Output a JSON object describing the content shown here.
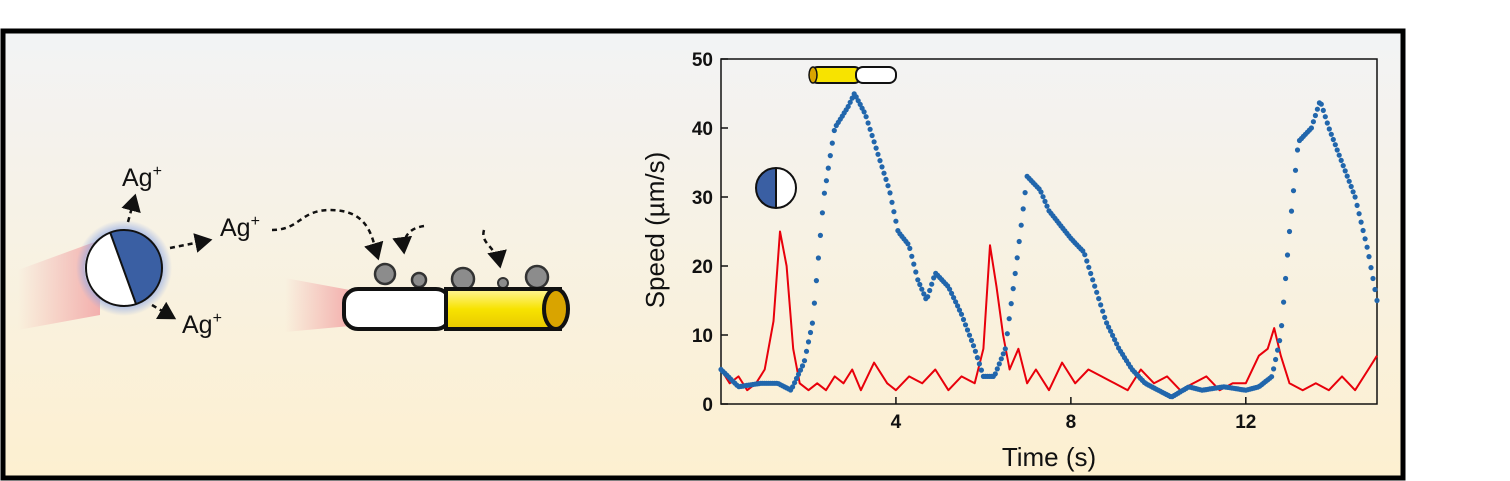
{
  "schematic": {
    "ion_labels": [
      "Ag",
      "Ag",
      "Ag",
      "Ag"
    ],
    "ion_charge": "+",
    "colors": {
      "janus_blue": "#3a5fa3",
      "janus_glow": "#9fb6e6",
      "rod_gold": "#f7e300",
      "rod_gold_cap": "#d9a400",
      "particle_gray": "#8c8c8c",
      "tail_red": "#f2b2b2"
    }
  },
  "chart_data": {
    "type": "line",
    "title": "",
    "xlabel": "Time (s)",
    "ylabel": "Speed (µm/s)",
    "xlim": [
      0,
      15
    ],
    "ylim": [
      0,
      50
    ],
    "x_ticks": [
      4,
      8,
      12
    ],
    "y_ticks": [
      0,
      10,
      20,
      30,
      40,
      50
    ],
    "grid": false,
    "legend": "icons",
    "series": [
      {
        "name": "",
        "style": "dots",
        "color": "#2166ac",
        "icon": "janus-sphere",
        "x": [
          0,
          0.4,
          0.9,
          1.3,
          1.6,
          1.9,
          2.1,
          2.35,
          2.6,
          2.9,
          3.05,
          3.3,
          3.6,
          3.85,
          4.05,
          4.3,
          4.5,
          4.7,
          4.9,
          5.2,
          5.5,
          5.8,
          6.0,
          6.25,
          6.5,
          6.75,
          7.0,
          7.3,
          7.5,
          7.75,
          8.0,
          8.3,
          8.6,
          8.8,
          9.1,
          9.4,
          9.7,
          10.0,
          10.3,
          10.7,
          11.0,
          11.5,
          12.0,
          12.3,
          12.6,
          12.8,
          13.0,
          13.2,
          13.5,
          13.7,
          13.9,
          14.2,
          14.5,
          14.8,
          15.0
        ],
        "y": [
          5,
          2.5,
          3,
          3,
          2,
          6,
          12,
          30,
          40,
          43,
          45,
          42,
          36,
          31,
          25,
          23,
          18,
          15,
          19,
          17,
          13,
          8,
          4,
          4,
          8,
          20,
          33,
          31,
          28,
          26,
          24,
          22,
          16,
          12,
          8,
          5,
          3,
          2,
          1,
          2.5,
          2,
          2.5,
          2,
          2.5,
          4,
          10,
          25,
          38,
          40,
          44,
          40,
          35,
          30,
          22,
          15
        ]
      },
      {
        "name": "",
        "style": "line",
        "color": "#e8000b",
        "icon": "janus-rod",
        "x": [
          0,
          0.2,
          0.4,
          0.6,
          0.8,
          1.0,
          1.2,
          1.35,
          1.5,
          1.65,
          1.8,
          2.0,
          2.2,
          2.4,
          2.6,
          2.8,
          3.0,
          3.2,
          3.5,
          3.8,
          4.0,
          4.3,
          4.6,
          4.9,
          5.2,
          5.5,
          5.8,
          6.0,
          6.15,
          6.3,
          6.45,
          6.6,
          6.8,
          7.0,
          7.2,
          7.5,
          7.8,
          8.1,
          8.4,
          8.7,
          9.0,
          9.3,
          9.6,
          9.9,
          10.2,
          10.5,
          10.8,
          11.1,
          11.4,
          11.7,
          12.0,
          12.3,
          12.5,
          12.65,
          12.8,
          13.0,
          13.3,
          13.6,
          13.9,
          14.2,
          14.5,
          14.8,
          15.0
        ],
        "y": [
          5,
          3,
          4,
          2,
          3,
          5,
          12,
          25,
          20,
          8,
          3,
          2,
          3,
          2,
          4,
          3,
          5,
          2,
          6,
          3,
          2,
          4,
          3,
          5,
          2,
          4,
          3,
          8,
          23,
          17,
          10,
          5,
          8,
          3,
          5,
          2,
          6,
          3,
          5,
          4,
          3,
          2,
          5,
          3,
          4,
          2,
          3,
          4,
          2,
          3,
          3,
          7,
          8,
          11,
          7,
          3,
          2,
          3,
          2,
          4,
          2,
          5,
          7
        ]
      }
    ]
  }
}
